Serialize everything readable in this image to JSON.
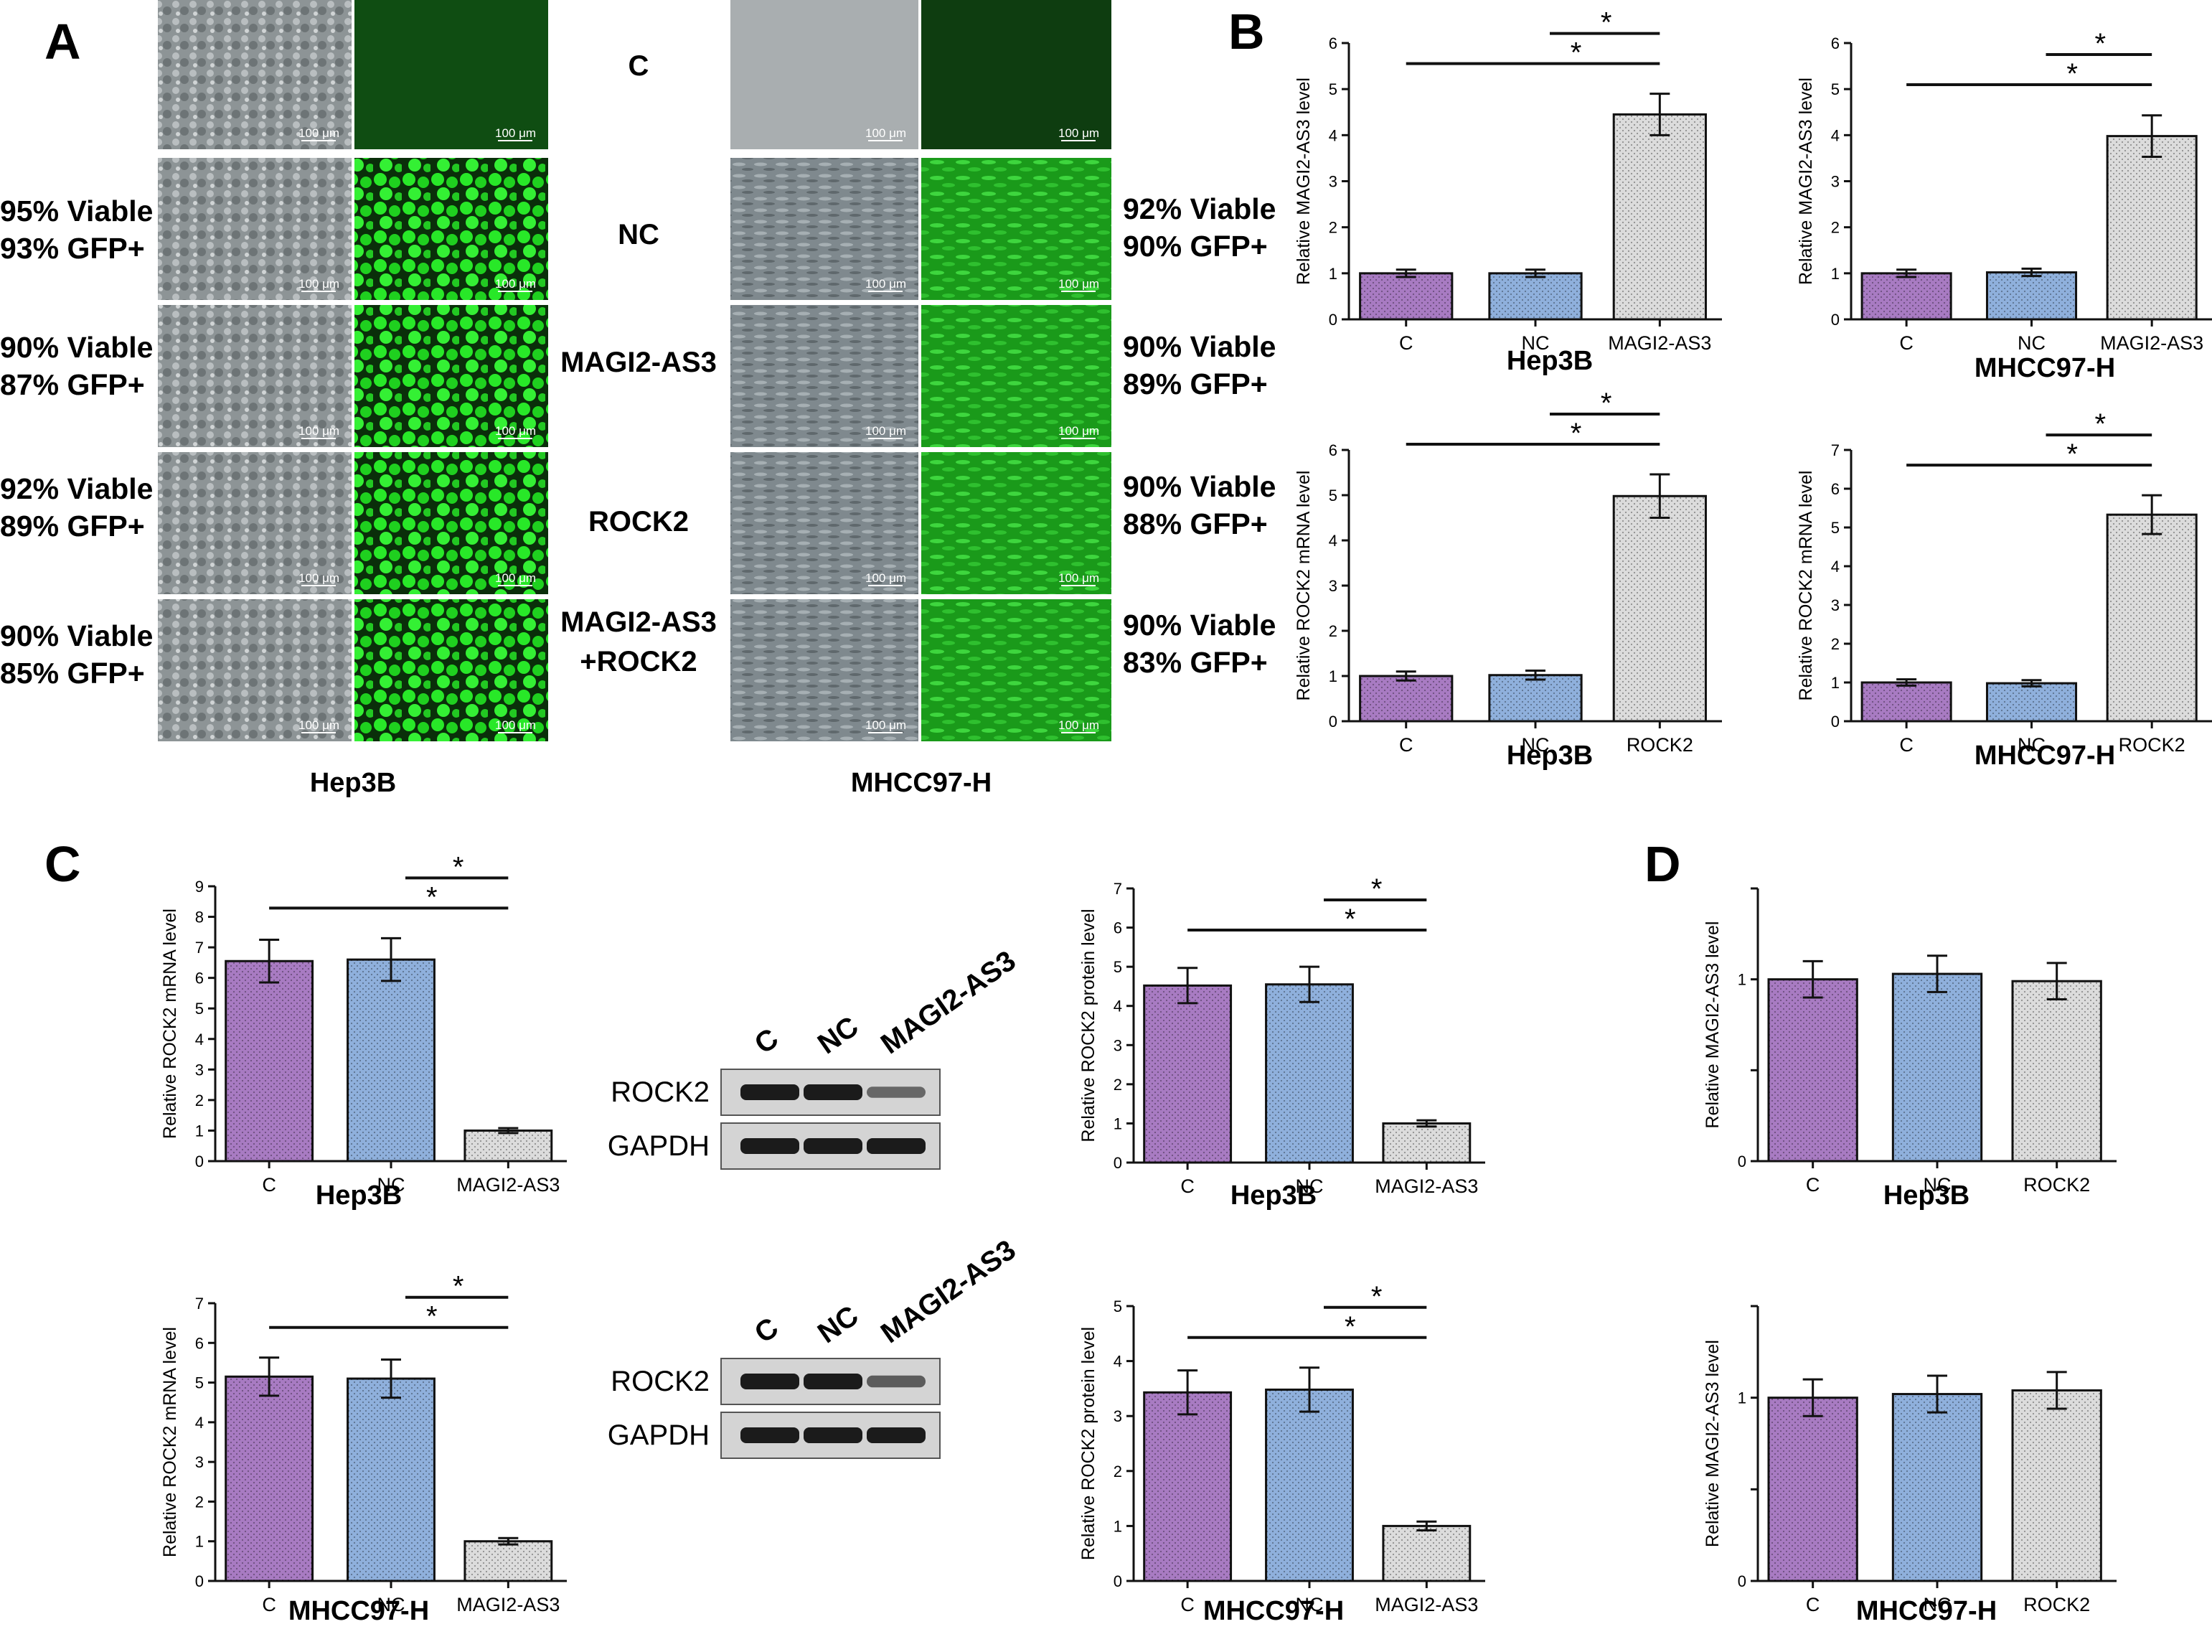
{
  "panels": {
    "A": "A",
    "B": "B",
    "C": "C",
    "D": "D"
  },
  "panel_a": {
    "groups": [
      "C",
      "NC",
      "MAGI2-AS3",
      "ROCK2",
      "MAGI2-AS3\n+ROCK2"
    ],
    "group_lines": [
      [
        "C"
      ],
      [
        "NC"
      ],
      [
        "MAGI2-AS3"
      ],
      [
        "ROCK2"
      ],
      [
        "MAGI2-AS3",
        "+ROCK2"
      ]
    ],
    "hep3b_viability": [
      null,
      [
        "95% Viable",
        "93% GFP+"
      ],
      [
        "90% Viable",
        "87% GFP+"
      ],
      [
        "92% Viable",
        "89% GFP+"
      ],
      [
        "90% Viable",
        "85% GFP+"
      ]
    ],
    "mhcc_viability": [
      null,
      [
        "92% Viable",
        "90% GFP+"
      ],
      [
        "90% Viable",
        "89% GFP+"
      ],
      [
        "90% Viable",
        "88% GFP+"
      ],
      [
        "90% Viable",
        "83% GFP+"
      ]
    ],
    "scale_label": "100 μm",
    "cell_line_left": "Hep3B",
    "cell_line_right": "MHCC97-H",
    "colors": {
      "gfp_bright": "#22e022",
      "gfp_dim": "#0f4d12",
      "phase": "#9aa0a2"
    }
  },
  "western": [
    {
      "lanes": [
        "C",
        "NC",
        "MAGI2-AS3"
      ],
      "rows": [
        "ROCK2",
        "GAPDH"
      ],
      "rock2_intensity": [
        1.0,
        1.0,
        0.35
      ]
    },
    {
      "lanes": [
        "C",
        "NC",
        "MAGI2-AS3"
      ],
      "rows": [
        "ROCK2",
        "GAPDH"
      ],
      "rock2_intensity": [
        1.0,
        1.0,
        0.45
      ]
    }
  ],
  "chart_data": [
    {
      "id": "b1",
      "type": "bar",
      "categories": [
        "C",
        "NC",
        "MAGI2-AS3"
      ],
      "values": [
        1.0,
        1.0,
        4.45
      ],
      "errors": [
        0.08,
        0.08,
        0.45
      ],
      "ylabel": "Relative MAGI2-AS3 level",
      "xlabel": "Hep3B",
      "ylim": [
        0,
        6
      ],
      "yticks": [
        "0",
        "1",
        "2",
        "3",
        "4",
        "5",
        "6"
      ],
      "sig": [
        "*",
        "*"
      ]
    },
    {
      "id": "b2",
      "type": "bar",
      "categories": [
        "C",
        "NC",
        "MAGI2-AS3"
      ],
      "values": [
        1.0,
        1.02,
        3.98
      ],
      "errors": [
        0.08,
        0.08,
        0.45
      ],
      "ylabel": "Relative MAGI2-AS3 level",
      "xlabel": "MHCC97-H",
      "ylim": [
        0,
        6
      ],
      "yticks": [
        "0",
        "1",
        "2",
        "3",
        "4",
        "5",
        "6"
      ],
      "sig": [
        "*",
        "*"
      ]
    },
    {
      "id": "b3",
      "type": "bar",
      "categories": [
        "C",
        "NC",
        "ROCK2"
      ],
      "values": [
        1.0,
        1.02,
        4.98
      ],
      "errors": [
        0.1,
        0.1,
        0.48
      ],
      "ylabel": "Relative ROCK2 mRNA level",
      "xlabel": "Hep3B",
      "ylim": [
        0,
        6
      ],
      "yticks": [
        "0",
        "1",
        "2",
        "3",
        "4",
        "5",
        "6"
      ],
      "sig": [
        "*",
        "*"
      ]
    },
    {
      "id": "b4",
      "type": "bar",
      "categories": [
        "C",
        "NC",
        "ROCK2"
      ],
      "values": [
        1.0,
        0.98,
        5.33
      ],
      "errors": [
        0.08,
        0.08,
        0.5
      ],
      "ylabel": "Relative ROCK2 mRNA level",
      "xlabel": "MHCC97-H",
      "ylim": [
        0,
        7
      ],
      "yticks": [
        "0",
        "1",
        "2",
        "3",
        "4",
        "5",
        "6",
        "7"
      ],
      "sig": [
        "*",
        "*"
      ]
    },
    {
      "id": "c1",
      "type": "bar",
      "categories": [
        "C",
        "NC",
        "MAGI2-AS3"
      ],
      "values": [
        6.55,
        6.6,
        1.0
      ],
      "errors": [
        0.7,
        0.7,
        0.08
      ],
      "ylabel": "Relative ROCK2 mRNA level",
      "xlabel": "Hep3B",
      "ylim": [
        0,
        9
      ],
      "yticks": [
        "0",
        "1",
        "2",
        "3",
        "4",
        "5",
        "6",
        "7",
        "8",
        "9"
      ],
      "sig": [
        "*",
        "*"
      ]
    },
    {
      "id": "c2",
      "type": "bar",
      "categories": [
        "C",
        "NC",
        "MAGI2-AS3"
      ],
      "values": [
        4.52,
        4.55,
        1.0
      ],
      "errors": [
        0.45,
        0.45,
        0.08
      ],
      "ylabel": "Relative ROCK2 protein level",
      "xlabel": "Hep3B",
      "ylim": [
        0,
        7
      ],
      "yticks": [
        "0",
        "1",
        "2",
        "3",
        "4",
        "5",
        "6",
        "7"
      ],
      "sig": [
        "*",
        "*"
      ]
    },
    {
      "id": "c3",
      "type": "bar",
      "categories": [
        "C",
        "NC",
        "MAGI2-AS3"
      ],
      "values": [
        5.15,
        5.1,
        1.0
      ],
      "errors": [
        0.48,
        0.48,
        0.08
      ],
      "ylabel": "Relative ROCK2 mRNA level",
      "xlabel": "MHCC97-H",
      "ylim": [
        0,
        7
      ],
      "yticks": [
        "0",
        "1",
        "2",
        "3",
        "4",
        "5",
        "6",
        "7"
      ],
      "sig": [
        "*",
        "*"
      ]
    },
    {
      "id": "c4",
      "type": "bar",
      "categories": [
        "C",
        "NC",
        "MAGI2-AS3"
      ],
      "values": [
        3.43,
        3.48,
        1.0
      ],
      "errors": [
        0.4,
        0.4,
        0.08
      ],
      "ylabel": "Relative ROCK2 protein level",
      "xlabel": "MHCC97-H",
      "ylim": [
        0,
        5
      ],
      "yticks": [
        "0",
        "1",
        "2",
        "3",
        "4",
        "5"
      ],
      "sig": [
        "*",
        "*"
      ]
    },
    {
      "id": "d1",
      "type": "bar",
      "categories": [
        "C",
        "NC",
        "ROCK2"
      ],
      "values": [
        1.0,
        1.03,
        0.99
      ],
      "errors": [
        0.1,
        0.1,
        0.1
      ],
      "ylabel": "Relative MAGI2-AS3 level",
      "xlabel": "Hep3B",
      "ylim": [
        0,
        1.5
      ],
      "yticks": [
        "0",
        "",
        "1",
        ""
      ],
      "sig": []
    },
    {
      "id": "d2",
      "type": "bar",
      "categories": [
        "C",
        "NC",
        "ROCK2"
      ],
      "values": [
        1.0,
        1.02,
        1.04
      ],
      "errors": [
        0.1,
        0.1,
        0.1
      ],
      "ylabel": "Relative MAGI2-AS3 level",
      "xlabel": "MHCC97-H",
      "ylim": [
        0,
        1.5
      ],
      "yticks": [
        "0",
        "",
        "1",
        ""
      ],
      "sig": []
    }
  ]
}
